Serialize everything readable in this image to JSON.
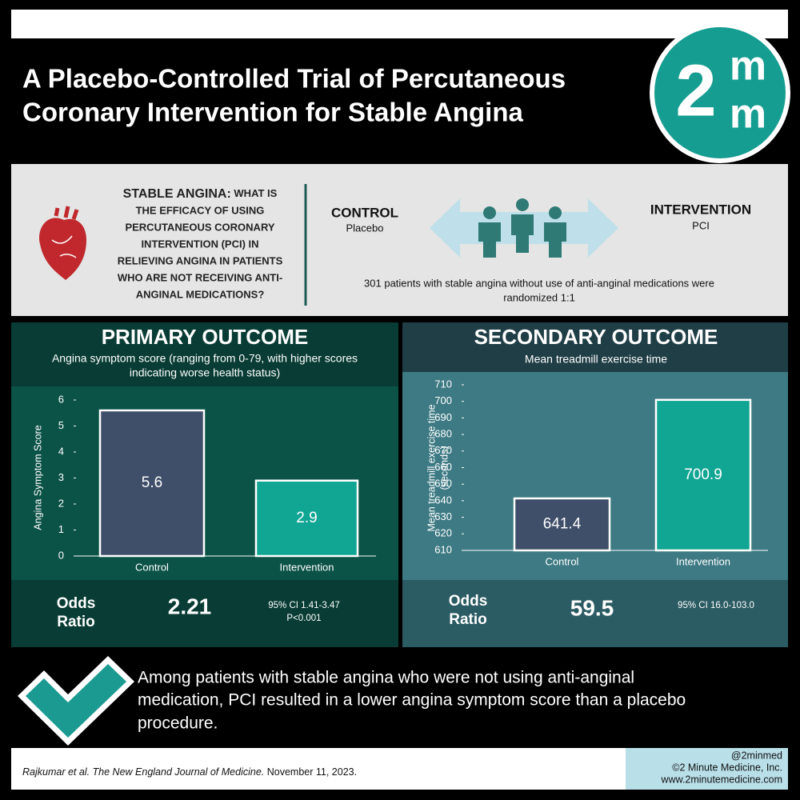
{
  "header": {
    "title_lines": [
      "A Placebo-Controlled Trial of Percutaneous",
      "Coronary Intervention for Stable Angina"
    ],
    "logo": {
      "digit": "2",
      "letter": "m"
    }
  },
  "question": {
    "lead": "STABLE ANGINA:",
    "lines": [
      "WHAT IS",
      "THE EFFICACY OF USING",
      "PERCUTANEOUS CORONARY",
      "INTERVENTION (PCI) IN",
      "RELIEVING ANGINA IN PATIENTS",
      "WHO ARE NOT RECEIVING ANTI-",
      "ANGINAL MEDICATIONS?"
    ]
  },
  "design": {
    "control": {
      "label": "CONTROL",
      "detail": "Placebo"
    },
    "intervention": {
      "label": "INTERVENTION",
      "detail": "PCI"
    },
    "population_lines": [
      "301 patients with stable angina without use of anti-anginal medications were",
      "randomized 1:1"
    ]
  },
  "chart_data": [
    {
      "type": "bar",
      "title": "PRIMARY OUTCOME",
      "subtitle_lines": [
        "Angina symptom score (ranging from 0-79, with higher scores",
        "indicating worse health status)"
      ],
      "ylabel_lines": [
        "Angina Symptom Score"
      ],
      "categories": [
        "Control",
        "Intervention"
      ],
      "values": [
        5.6,
        2.9
      ],
      "colors": [
        "#3f4e69",
        "#11a594"
      ],
      "ylim": [
        0,
        6
      ],
      "yticks": [
        0,
        1,
        2,
        3,
        4,
        5,
        6
      ],
      "odds": {
        "label_lines": [
          "Odds",
          "Ratio"
        ],
        "value": "2.21",
        "ci_lines": [
          "95% CI 1.41-3.47",
          "P<0.001"
        ]
      }
    },
    {
      "type": "bar",
      "title": "SECONDARY OUTCOME",
      "subtitle_lines": [
        "Mean treadmill exercise time"
      ],
      "ylabel_lines": [
        "Mean treadmill exercise time",
        "(seconds)"
      ],
      "categories": [
        "Control",
        "Intervention"
      ],
      "values": [
        641.4,
        700.9
      ],
      "colors": [
        "#3f4e69",
        "#11a594"
      ],
      "ylim": [
        610,
        710
      ],
      "yticks": [
        610,
        620,
        630,
        640,
        650,
        660,
        670,
        680,
        690,
        700,
        710
      ],
      "odds": {
        "label_lines": [
          "Odds",
          "Ratio"
        ],
        "value": "59.5",
        "ci_lines": [
          "95% CI 16.0-103.0"
        ]
      }
    }
  ],
  "conclusion_lines": [
    "Among patients with stable angina who were not using anti-anginal",
    "medication, PCI resulted in a lower angina symptom score than a placebo",
    "procedure."
  ],
  "citation": {
    "authors": "Rajkumar et al.",
    "journal": "The New England Journal of Medicine.",
    "date": "November 11, 2023."
  },
  "credits": [
    "@2minmed",
    "©2 Minute Medicine, Inc.",
    "www.2minutemedicine.com"
  ]
}
